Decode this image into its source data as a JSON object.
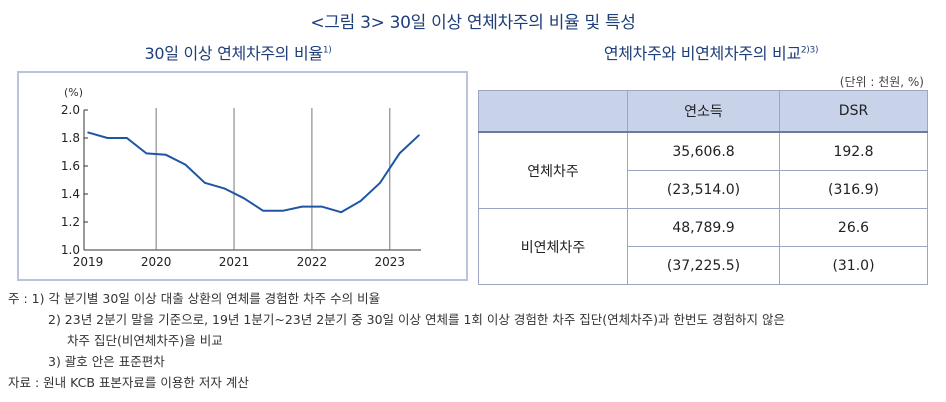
{
  "figure_title": "<그림 3> 30일 이상 연체차주의 비율 및 특성",
  "left_subtitle": "30일 이상 연체차주의 비율",
  "left_subtitle_sup": "1)",
  "right_subtitle": "연체차주와 비연체차주의 비교",
  "right_subtitle_sup": "2)3)",
  "unit_note": "(단위 : 천원, %)",
  "table": {
    "headers": [
      "",
      "연소득",
      "DSR"
    ],
    "rows": [
      {
        "label": "연체차주",
        "values": [
          [
            "35,606.8",
            "192.8"
          ],
          [
            "(23,514.0)",
            "(316.9)"
          ]
        ]
      },
      {
        "label": "비연체차주",
        "values": [
          [
            "48,789.9",
            "26.6"
          ],
          [
            "(37,225.5)",
            "(31.0)"
          ]
        ]
      }
    ]
  },
  "notes": [
    "주 : 1) 각 분기별 30일 이상 대출 상환의 연체를 경험한 차주 수의 비율",
    "2) 23년 2분기 말을 기준으로, 19년 1분기~23년 2분기 중 30일 이상 연체를 1회 이상 경험한 차주 집단(연체차주)과 한번도 경험하지 않은",
    "차주 집단(비연체차주)을 비교",
    "3) 괄호 안은 표준편차",
    "자료 : 원내 KCB 표본자료를 이용한 저자 계산"
  ],
  "chart_data": {
    "type": "line",
    "yunit_label": "(%)",
    "ylim": [
      1.0,
      2.0
    ],
    "yticks": [
      "2.0",
      "1.8",
      "1.6",
      "1.4",
      "1.2",
      "1.0"
    ],
    "xtick_labels": [
      "2019",
      "2020",
      "2021",
      "2022",
      "2023"
    ],
    "x": [
      "19Q1",
      "19Q2",
      "19Q3",
      "19Q4",
      "20Q1",
      "20Q2",
      "20Q3",
      "20Q4",
      "21Q1",
      "21Q2",
      "21Q3",
      "21Q4",
      "22Q1",
      "22Q2",
      "22Q3",
      "22Q4",
      "23Q1",
      "23Q2"
    ],
    "series": [
      {
        "values": [
          1.84,
          1.8,
          1.8,
          1.69,
          1.68,
          1.61,
          1.48,
          1.44,
          1.37,
          1.28,
          1.28,
          1.31,
          1.31,
          1.27,
          1.35,
          1.48,
          1.69,
          1.82
        ],
        "color": "#1f55a5"
      }
    ],
    "grid": "vertical year separators",
    "line_color": "#1f55a5"
  }
}
